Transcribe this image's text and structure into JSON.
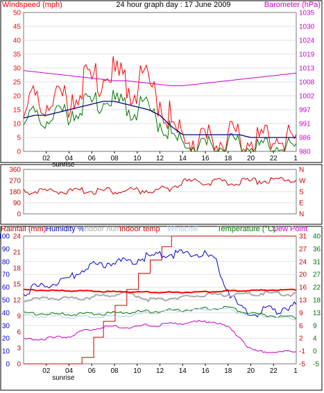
{
  "chart_data": [
    {
      "type": "line",
      "title": "24 hour graph day : 17 June 2009",
      "left_axis_label": "Windspeed (mph)",
      "right_axis_label": "Barometer (hPa)",
      "left_ticks": [
        "0",
        "5",
        "10",
        "15",
        "20",
        "25",
        "30",
        "35",
        "40",
        "45",
        "50"
      ],
      "right_ticks": [
        "980",
        "986",
        "991",
        "997",
        "1002",
        "1008",
        "1013",
        "1019",
        "1024",
        "1030",
        "1035"
      ],
      "ylim_left": [
        0,
        50
      ],
      "ylim_right": [
        980,
        1035
      ],
      "x_hours": [
        0,
        1,
        2,
        3,
        4,
        5,
        6,
        7,
        8,
        9,
        10,
        11,
        12,
        13,
        14,
        15,
        16,
        17,
        18,
        19,
        20,
        21,
        22,
        23,
        24
      ],
      "series": [
        {
          "key": "gust",
          "color": "#ff0000",
          "values": [
            18,
            20,
            22,
            21,
            24,
            27,
            28,
            30,
            31,
            29,
            28,
            27,
            24,
            13,
            7,
            8,
            7,
            8,
            7,
            7,
            8,
            8,
            9,
            10,
            8
          ]
        },
        {
          "key": "wind",
          "color": "#007700",
          "values": [
            13,
            14,
            14,
            15,
            17,
            18,
            19,
            20,
            20,
            19,
            18,
            17,
            14,
            8,
            4,
            4,
            4,
            4,
            4,
            4,
            4,
            4,
            4,
            5,
            4
          ]
        },
        {
          "key": "avg",
          "color": "#000080",
          "values": [
            12,
            13,
            13,
            14,
            15,
            16,
            17,
            18,
            18,
            17,
            16,
            15,
            13,
            9,
            6,
            6,
            6,
            6,
            6,
            6,
            5,
            5,
            5,
            5,
            5
          ]
        },
        {
          "key": "baro",
          "color": "#cc00cc",
          "axis": "right",
          "values": [
            1012,
            1011.5,
            1011,
            1010.5,
            1010,
            1009.5,
            1009,
            1008.5,
            1008,
            1008,
            1007.5,
            1007,
            1006.5,
            1006,
            1006,
            1006.5,
            1007,
            1007.5,
            1008,
            1008.5,
            1009,
            1009.5,
            1010,
            1010.5,
            1011
          ]
        }
      ]
    },
    {
      "type": "line",
      "left_ticks": [
        "0",
        "90",
        "180",
        "270",
        "360"
      ],
      "right_ticks": [
        "N",
        "E",
        "S",
        "W",
        "N"
      ],
      "ylim": [
        0,
        360
      ],
      "x_hours": [
        0,
        2,
        4,
        6,
        8,
        10,
        12,
        13,
        14,
        16,
        18,
        20,
        22,
        24
      ],
      "series": [
        {
          "key": "wind_direction",
          "color": "#cc0000",
          "values": [
            195,
            200,
            198,
            202,
            200,
            205,
            210,
            225,
            280,
            275,
            270,
            280,
            290,
            300
          ]
        }
      ]
    },
    {
      "type": "line",
      "labels": {
        "rainfall": "Rainfall (mm)",
        "humidity": "Humidity %",
        "indoor_hum": "Indoor hum",
        "indoor_temp": "Indoor temp",
        "windchill": "Windchill",
        "temperature": "Temperature (°C)",
        "dew_point": "Dew Point"
      },
      "left_ticks_humidity": [
        "0",
        "10",
        "20",
        "30",
        "40",
        "50",
        "60",
        "70",
        "80",
        "90",
        "100"
      ],
      "left_ticks_rain": [
        "0",
        "3",
        "6",
        "9",
        "12",
        "15",
        "18",
        "21",
        "24"
      ],
      "right_ticks_outer": [
        "-5",
        "0",
        "4",
        "9",
        "13",
        "18",
        "22",
        "27",
        "31",
        "36",
        "40"
      ],
      "right_ticks_inner": [
        "-5",
        "-1",
        "2",
        "6",
        "9",
        "13",
        "16",
        "20",
        "24",
        "27",
        "31"
      ],
      "ylim_humidity": [
        0,
        100
      ],
      "ylim_rain": [
        0,
        24
      ],
      "x_hours": [
        0,
        1,
        2,
        3,
        4,
        5,
        6,
        7,
        8,
        9,
        10,
        11,
        12,
        13,
        14,
        15,
        16,
        17,
        18,
        19,
        20,
        21,
        22,
        23,
        24
      ],
      "series": [
        {
          "key": "humidity",
          "color": "#0000cc",
          "unit": "%",
          "values": [
            58,
            62,
            64,
            65,
            68,
            75,
            79,
            80,
            82,
            82,
            84,
            86,
            87,
            88,
            88,
            88,
            87,
            80,
            60,
            45,
            42,
            43,
            44,
            46,
            48
          ]
        },
        {
          "key": "indoor_hum",
          "color": "#aaaaaa",
          "unit": "%",
          "values": [
            50,
            51,
            52,
            52,
            52,
            52,
            53,
            54,
            55,
            56,
            54,
            51,
            51,
            52,
            53,
            54,
            55,
            55,
            55,
            55,
            55,
            56,
            56,
            55,
            55
          ]
        },
        {
          "key": "indoor_temp",
          "color": "#ff0000",
          "unit": "°C",
          "values": [
            21.2,
            21.1,
            21,
            20.9,
            20.8,
            20.8,
            20.7,
            20.6,
            20.5,
            20.5,
            20.4,
            20.4,
            20.3,
            20.3,
            20.3,
            20.4,
            20.5,
            20.6,
            20.7,
            20.8,
            20.9,
            21,
            21.1,
            21.1,
            21.2
          ]
        },
        {
          "key": "temperature",
          "color": "#007700",
          "unit": "°C",
          "values": [
            13.2,
            13,
            13,
            12.8,
            12.7,
            12.8,
            12.9,
            13,
            13.2,
            13.4,
            13.6,
            13.8,
            14,
            14.2,
            14.3,
            14.5,
            14.8,
            15,
            15,
            14,
            13,
            12.5,
            12.2,
            11.8,
            11.5
          ]
        },
        {
          "key": "windchill",
          "color": "#aaccee",
          "unit": "°C",
          "values": [
            12.5,
            12,
            12,
            12,
            11.8,
            11.8,
            11.9,
            12,
            12.2,
            12.4,
            12.8,
            13.2,
            13.5,
            13.8,
            14,
            14.2,
            14.5,
            14.7,
            14.6,
            13.5,
            12.7,
            12.2,
            11.8,
            11.4,
            11
          ]
        },
        {
          "key": "dew_point",
          "color": "#cc00cc",
          "unit": "°C",
          "values": [
            3.8,
            4,
            4.2,
            4.5,
            5,
            6.5,
            7.5,
            8.3,
            8.5,
            8.2,
            8.5,
            8.8,
            9,
            9.3,
            9.6,
            10,
            10.2,
            10,
            8,
            5,
            0.2,
            -0.5,
            -0.5,
            -0.5,
            -0.3
          ]
        },
        {
          "key": "rainfall",
          "color": "#cc0000",
          "unit": "mm",
          "values": [
            0,
            0,
            0,
            0,
            0,
            1.2,
            5,
            8,
            11,
            14,
            17,
            19.5,
            22,
            24,
            24,
            24,
            24,
            24,
            24,
            24,
            24,
            24,
            24,
            24,
            24
          ]
        }
      ]
    }
  ],
  "x_tick_labels": [
    "02",
    "04",
    "06",
    "08",
    "10",
    "12",
    "14",
    "16",
    "18",
    "20",
    "22"
  ],
  "sunrise_label": "sunrise",
  "end_tick_label": "1"
}
